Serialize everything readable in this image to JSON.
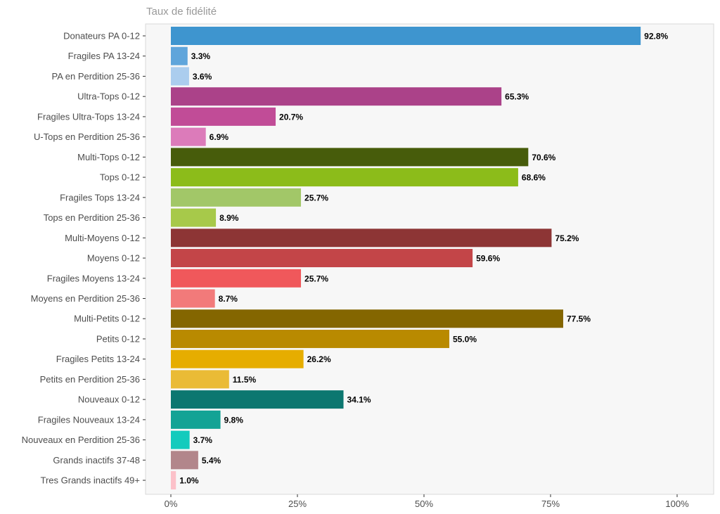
{
  "chart_data": {
    "type": "bar",
    "orientation": "horizontal",
    "title": "Taux de fidélité",
    "xlabel": "",
    "ylabel": "",
    "xlim": [
      0,
      100
    ],
    "x_ticks": [
      "0%",
      "25%",
      "50%",
      "75%",
      "100%"
    ],
    "x_tick_values": [
      0,
      25,
      50,
      75,
      100
    ],
    "grid": false,
    "legend": "none",
    "categories": [
      "Donateurs PA 0-12",
      "Fragiles PA 13-24",
      "PA en Perdition 25-36",
      "Ultra-Tops 0-12",
      "Fragiles Ultra-Tops 13-24",
      "U-Tops en Perdition 25-36",
      "Multi-Tops 0-12",
      "Tops 0-12",
      "Fragiles Tops 13-24",
      "Tops en Perdition 25-36",
      "Multi-Moyens 0-12",
      "Moyens 0-12",
      "Fragiles Moyens 13-24",
      "Moyens en Perdition 25-36",
      "Multi-Petits 0-12",
      "Petits 0-12",
      "Fragiles Petits 13-24",
      "Petits en Perdition 25-36",
      "Nouveaux 0-12",
      "Fragiles Nouveaux 13-24",
      "Nouveaux en Perdition 25-36",
      "Grands inactifs 37-48",
      "Tres Grands inactifs 49+"
    ],
    "values": [
      92.8,
      3.3,
      3.6,
      65.3,
      20.7,
      6.9,
      70.6,
      68.6,
      25.7,
      8.9,
      75.2,
      59.6,
      25.7,
      8.7,
      77.5,
      55.0,
      26.2,
      11.5,
      34.1,
      9.8,
      3.7,
      5.4,
      1.0
    ],
    "labels": [
      "92.8%",
      "3.3%",
      "3.6%",
      "65.3%",
      "20.7%",
      "6.9%",
      "70.6%",
      "68.6%",
      "25.7%",
      "8.9%",
      "75.2%",
      "59.6%",
      "25.7%",
      "8.7%",
      "77.5%",
      "55.0%",
      "26.2%",
      "11.5%",
      "34.1%",
      "9.8%",
      "3.7%",
      "5.4%",
      "1.0%"
    ],
    "colors": [
      "#3e95cf",
      "#5fa5db",
      "#abcdee",
      "#ab4289",
      "#c14c97",
      "#dc7bba",
      "#475c0b",
      "#8cbc1a",
      "#a2c768",
      "#a7c94a",
      "#8d3535",
      "#c34548",
      "#f0585b",
      "#f27a7a",
      "#846600",
      "#b98a00",
      "#e6ad00",
      "#eabb36",
      "#0c7770",
      "#13a395",
      "#13cbbd",
      "#b2868b",
      "#fcc1c9"
    ]
  }
}
